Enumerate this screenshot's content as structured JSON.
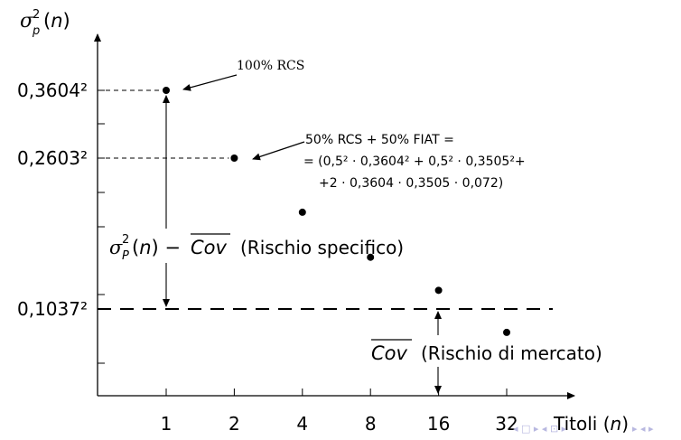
{
  "chart_data": {
    "type": "scatter",
    "ylabel": "σ_p²(n)",
    "xlabel": "Titoli (n)",
    "x": [
      1,
      2,
      4,
      8,
      16,
      32
    ],
    "xticks": [
      "1",
      "2",
      "4",
      "8",
      "16",
      "32"
    ],
    "y": [
      0.12989,
      0.06776,
      0.0473,
      0.0303,
      0.0178,
      0.00785
    ],
    "yticks": [
      {
        "label": "0,3604²",
        "value": 0.12989
      },
      {
        "label": "0,2603²",
        "value": 0.06776
      },
      {
        "label": "0,1037²",
        "value": 0.01075
      }
    ],
    "x_scale": "log2",
    "grid": false,
    "horizontal_line": {
      "value": 0.01075,
      "style": "dashed"
    },
    "annotations": {
      "rcs": "100% RCS",
      "mix_line1": "50% RCS + 50% FIAT =",
      "mix_line2": "= (0,5² · 0,3604² + 0,5² · 0,3505²+",
      "mix_line3": "+2 · 0,3604 · 0,3505 · 0,072)",
      "specific_math": "σ_P²(n) − Cov",
      "specific_text": "(Rischio specifico)",
      "market_math": "Cov",
      "market_text": "(Rischio di mercato)"
    }
  }
}
